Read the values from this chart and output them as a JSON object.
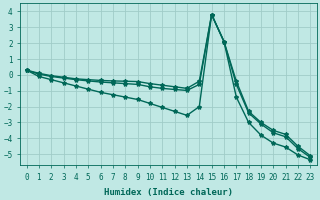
{
  "xlabel": "Humidex (Indice chaleur)",
  "ylabel": "",
  "bg_color": "#c0e8e4",
  "grid_color": "#a0ccc8",
  "line_color": "#006858",
  "xlim": [
    -0.5,
    23.5
  ],
  "ylim": [
    -5.7,
    4.5
  ],
  "xticks": [
    0,
    1,
    2,
    3,
    4,
    5,
    6,
    7,
    8,
    9,
    10,
    11,
    12,
    13,
    14,
    15,
    16,
    17,
    18,
    19,
    20,
    21,
    22,
    23
  ],
  "yticks": [
    -5,
    -4,
    -3,
    -2,
    -1,
    0,
    1,
    2,
    3,
    4
  ],
  "series": [
    [
      0.3,
      0.1,
      -0.05,
      -0.15,
      -0.25,
      -0.3,
      -0.35,
      -0.38,
      -0.4,
      -0.42,
      -0.55,
      -0.65,
      -0.75,
      -0.85,
      -0.4,
      3.8,
      2.1,
      -0.4,
      -2.3,
      -3.0,
      -3.5,
      -3.75,
      -4.5,
      -5.1
    ],
    [
      0.3,
      0.05,
      -0.1,
      -0.2,
      -0.3,
      -0.38,
      -0.45,
      -0.5,
      -0.55,
      -0.6,
      -0.75,
      -0.85,
      -0.92,
      -0.98,
      -0.6,
      3.8,
      2.1,
      -0.6,
      -2.4,
      -3.1,
      -3.65,
      -3.9,
      -4.65,
      -5.2
    ],
    [
      0.3,
      -0.1,
      -0.3,
      -0.5,
      -0.7,
      -0.9,
      -1.1,
      -1.25,
      -1.4,
      -1.55,
      -1.8,
      -2.05,
      -2.3,
      -2.55,
      -2.0,
      3.8,
      2.1,
      -1.4,
      -3.0,
      -3.8,
      -4.3,
      -4.55,
      -5.05,
      -5.35
    ]
  ],
  "marker": "*",
  "markersize": 3,
  "linewidth": 1.0,
  "tick_fontsize": 5.5,
  "xlabel_fontsize": 6.5
}
